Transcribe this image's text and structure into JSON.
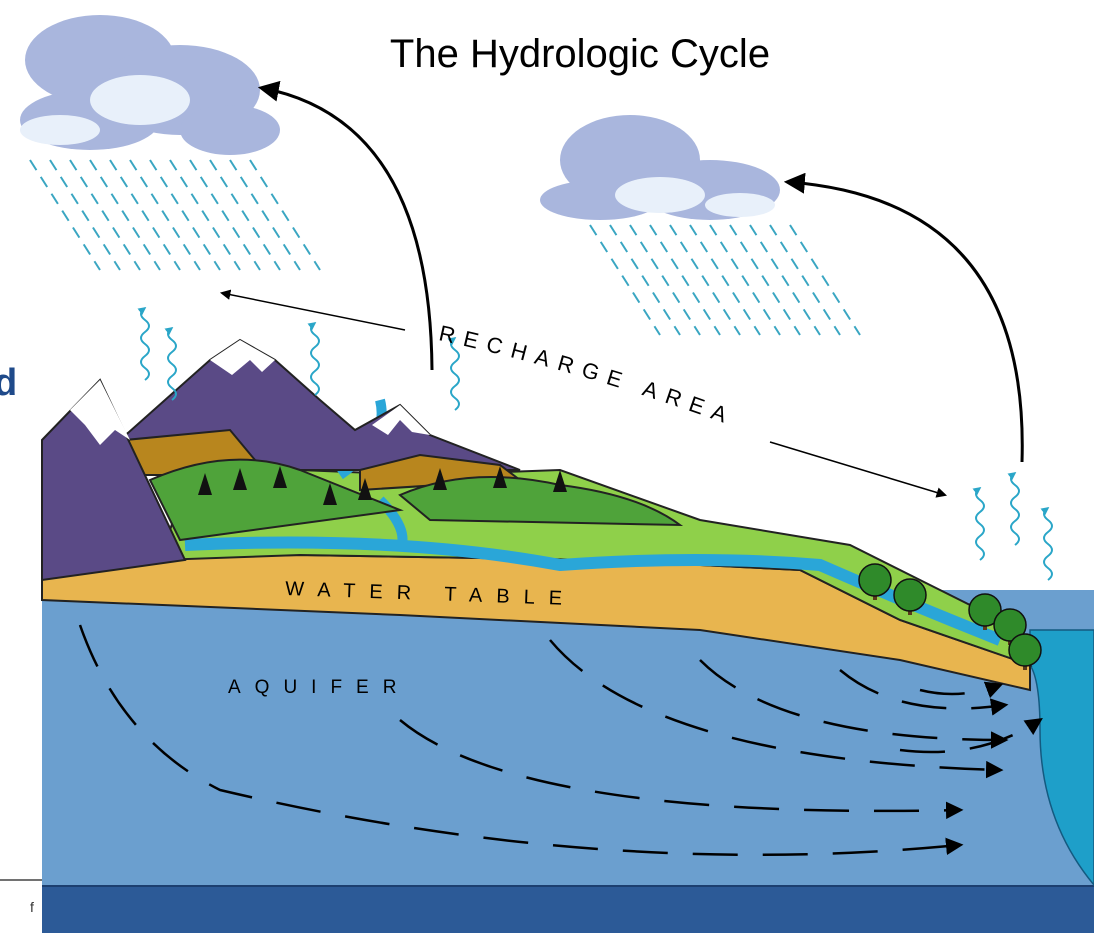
{
  "title": "The Hydrologic Cycle",
  "labels": {
    "recharge_area": "RECHARGE AREA",
    "water_table": "WATER TABLE",
    "aquifer": "AQUIFER"
  },
  "edge_fragments": {
    "left": "d",
    "bottom": "f"
  }
}
